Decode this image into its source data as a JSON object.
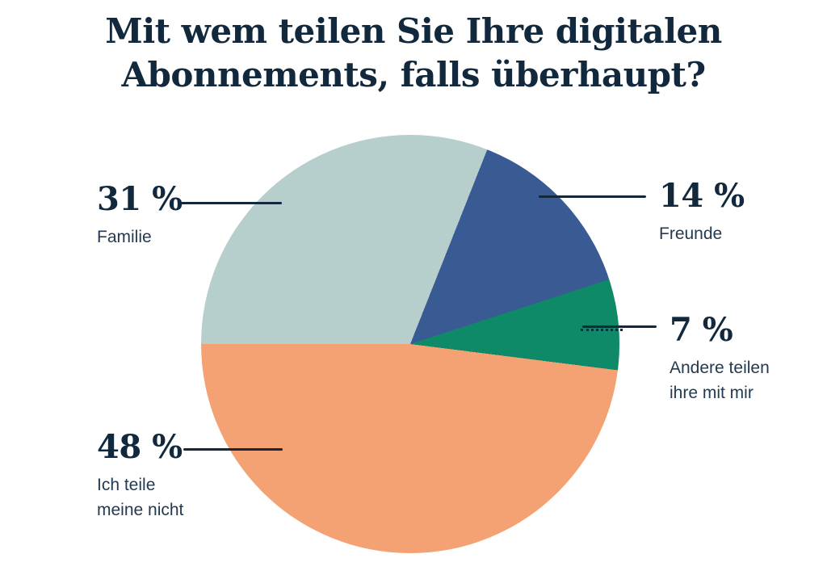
{
  "title": {
    "line1": "Mit wem teilen Sie Ihre digitalen",
    "line2": "Abonnements, falls überhaupt?"
  },
  "callouts": [
    {
      "id": "familie",
      "percent": "31 %",
      "name": "Familie"
    },
    {
      "id": "freunde",
      "percent": "14 %",
      "name": "Freunde"
    },
    {
      "id": "andere",
      "percent": "7 %",
      "name": "Andere teilen\nihre mit mir"
    },
    {
      "id": "nicht",
      "percent": "48 %",
      "name": "Ich teile\nmeine nicht"
    }
  ],
  "colors": {
    "text_navy": "#13293e",
    "slice_familie": "#b6cfcd",
    "slice_freunde": "#3a5a93",
    "slice_andere": "#0f8a69",
    "slice_nicht": "#f4a274",
    "background": "#ffffff"
  },
  "chart_data": {
    "type": "pie",
    "title": "Mit wem teilen Sie Ihre digitalen Abonnements, falls überhaupt?",
    "unit": "%",
    "start_angle_deg": 270,
    "direction": "clockwise",
    "legend_position": "callouts",
    "slices": [
      {
        "label": "Familie",
        "value": 31,
        "color": "#b6cfcd"
      },
      {
        "label": "Freunde",
        "value": 14,
        "color": "#3a5a93"
      },
      {
        "label": "Andere teilen ihre mit mir",
        "value": 7,
        "color": "#0f8a69"
      },
      {
        "label": "Ich teile meine nicht",
        "value": 48,
        "color": "#f4a274"
      }
    ]
  }
}
